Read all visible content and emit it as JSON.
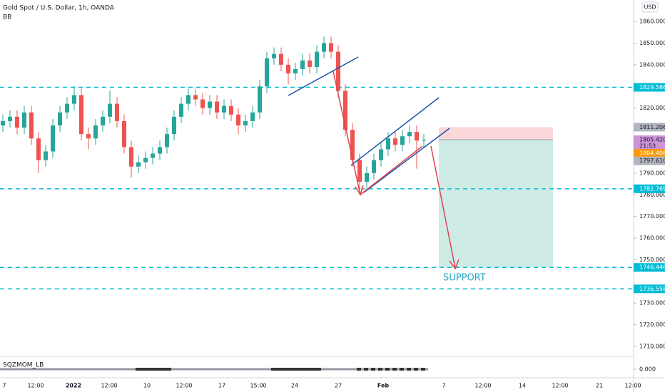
{
  "chart_data": {
    "type": "candlestick",
    "title": "Gold Spot / U.S. Dollar, 1h, OANDA",
    "indicator_label": "BB",
    "currency": "USD",
    "annotation": "SUPPORT",
    "countdown": "21:53",
    "up_color": "#26a69a",
    "down_color": "#ef5350",
    "ylim": [
      1705.4,
      1869.9
    ],
    "yticks": [
      {
        "value": 1710,
        "label": "1710.000"
      },
      {
        "value": 1720,
        "label": "1720.000"
      },
      {
        "value": 1730,
        "label": "1730.000"
      },
      {
        "value": 1750,
        "label": "1750.000"
      },
      {
        "value": 1760,
        "label": "1760.000"
      },
      {
        "value": 1770,
        "label": "1770.000"
      },
      {
        "value": 1780,
        "label": "1780.000"
      },
      {
        "value": 1790,
        "label": "1790.000"
      },
      {
        "value": 1820,
        "label": "1820.000"
      },
      {
        "value": 1840,
        "label": "1840.000"
      },
      {
        "value": 1850,
        "label": "1850.000"
      },
      {
        "value": 1860,
        "label": "1860.000"
      }
    ],
    "x_labels": [
      "7",
      "12:00",
      "2022",
      "12:00",
      "10",
      "12:00",
      "17",
      "15:00",
      "24",
      "27",
      "Feb",
      "7",
      "12:00",
      "14",
      "12:00",
      "21",
      "12:00"
    ],
    "open": [
      1812,
      1814,
      1816,
      1811,
      1818,
      1806,
      1796,
      1800,
      1812,
      1818,
      1822,
      1826,
      1808,
      1806,
      1812,
      1816,
      1822,
      1814,
      1802,
      1793,
      1795,
      1797,
      1799,
      1802,
      1808,
      1816,
      1822,
      1826,
      1824,
      1820,
      1823,
      1818,
      1821,
      1817,
      1812,
      1814,
      1818,
      1830,
      1843,
      1845,
      1840,
      1836,
      1838,
      1842,
      1839,
      1846,
      1850,
      1846,
      1828,
      1810,
      1796,
      1786,
      1790,
      1796,
      1801,
      1806,
      1803,
      1807,
      1809,
      1805
    ],
    "high": [
      1817,
      1819,
      1819,
      1821,
      1821,
      1809,
      1803,
      1815,
      1821,
      1825,
      1830,
      1829,
      1811,
      1815,
      1819,
      1828,
      1825,
      1817,
      1805,
      1798,
      1800,
      1802,
      1805,
      1811,
      1819,
      1825,
      1829,
      1829,
      1827,
      1826,
      1826,
      1824,
      1824,
      1820,
      1817,
      1821,
      1833,
      1846,
      1848,
      1848,
      1843,
      1841,
      1845,
      1845,
      1849,
      1853,
      1853,
      1849,
      1831,
      1813,
      1799,
      1793,
      1799,
      1804,
      1809,
      1809,
      1810,
      1812,
      1812,
      1808
    ],
    "low": [
      1809,
      1811,
      1808,
      1808,
      1803,
      1790,
      1793,
      1797,
      1809,
      1815,
      1819,
      1805,
      1801,
      1803,
      1809,
      1813,
      1811,
      1799,
      1788,
      1790,
      1792,
      1794,
      1796,
      1799,
      1805,
      1813,
      1819,
      1821,
      1817,
      1817,
      1815,
      1815,
      1814,
      1808,
      1809,
      1811,
      1815,
      1827,
      1840,
      1837,
      1831,
      1833,
      1835,
      1836,
      1836,
      1843,
      1843,
      1825,
      1807,
      1793,
      1780,
      1783,
      1787,
      1793,
      1798,
      1800,
      1800,
      1804,
      1792,
      1802
    ],
    "close": [
      1814,
      1816,
      1811,
      1818,
      1806,
      1796,
      1800,
      1812,
      1818,
      1822,
      1826,
      1808,
      1806,
      1812,
      1816,
      1822,
      1814,
      1802,
      1793,
      1795,
      1797,
      1799,
      1802,
      1808,
      1816,
      1822,
      1826,
      1824,
      1820,
      1823,
      1818,
      1821,
      1817,
      1812,
      1814,
      1818,
      1830,
      1843,
      1845,
      1840,
      1836,
      1838,
      1842,
      1839,
      1846,
      1850,
      1846,
      1828,
      1810,
      1796,
      1786,
      1790,
      1796,
      1801,
      1806,
      1803,
      1807,
      1809,
      1805,
      1805.42
    ],
    "levels": [
      1829.586,
      1782.769,
      1746.446,
      1736.558
    ],
    "level_color": "#00bcd4",
    "price_labels": [
      {
        "value": 1811.206,
        "label": "1811.206",
        "color": "#b2b5be"
      },
      {
        "value": 1805.42,
        "label": "1805.420",
        "color": "#ce93d8"
      },
      {
        "value": 1804.408,
        "label": "1804.408",
        "color": "#ff9800"
      },
      {
        "value": 1797.61,
        "label": "1797.610",
        "color": "#b2b5be"
      }
    ],
    "oscillator": {
      "name": "SQZMOM_LB",
      "value": 0,
      "label": "0.000"
    }
  }
}
